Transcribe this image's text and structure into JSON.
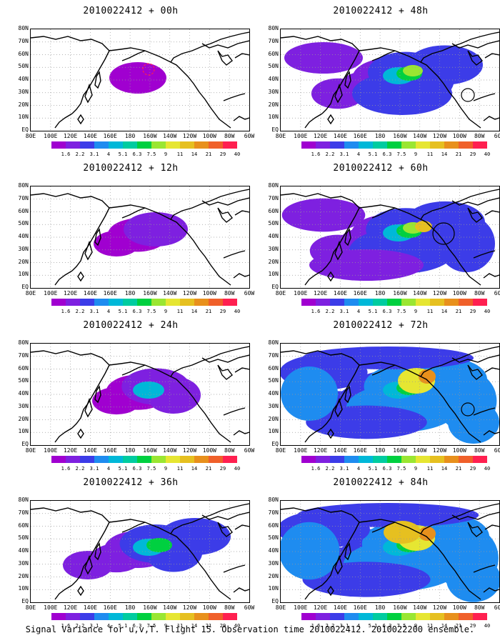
{
  "panels": [
    {
      "title": "2010022412 + 00h",
      "intensity": 0
    },
    {
      "title": "2010022412 + 48h",
      "intensity": 4
    },
    {
      "title": "2010022412 + 12h",
      "intensity": 1
    },
    {
      "title": "2010022412 + 60h",
      "intensity": 5
    },
    {
      "title": "2010022412 + 24h",
      "intensity": 2
    },
    {
      "title": "2010022412 + 72h",
      "intensity": 6
    },
    {
      "title": "2010022412 + 36h",
      "intensity": 3
    },
    {
      "title": "2010022412 + 84h",
      "intensity": 7
    }
  ],
  "axes": {
    "y_labels": [
      "80N",
      "70N",
      "60N",
      "50N",
      "40N",
      "30N",
      "20N",
      "10N",
      "EQ"
    ],
    "x_labels": [
      "80E",
      "100E",
      "120E",
      "140E",
      "160E",
      "180",
      "160W",
      "140W",
      "120W",
      "100W",
      "80W",
      "60W"
    ]
  },
  "colorbar": {
    "labels": [
      "1.6",
      "2.2",
      "3.1",
      "4",
      "5.1",
      "6.3",
      "7.5",
      "9",
      "11",
      "14",
      "21",
      "29",
      "40"
    ],
    "colors": [
      "#a000d0",
      "#7e20e0",
      "#3c3ce8",
      "#1e8cf0",
      "#00b8d8",
      "#00cca0",
      "#00d040",
      "#9ae632",
      "#e6e632",
      "#e6c020",
      "#e8901c",
      "#f0602a",
      "#ff2050"
    ]
  },
  "caption": "Signal Variance for u,v,T. Flight 15. Observation time 2010022412. 2010022200 ensemble."
}
